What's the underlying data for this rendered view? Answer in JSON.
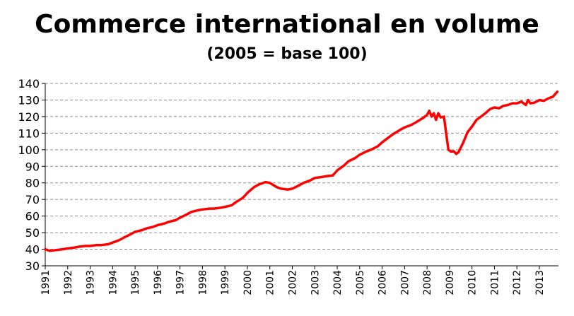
{
  "chart_data": {
    "type": "line",
    "title": "Commerce international en volume",
    "subtitle": "(2005 = base 100)",
    "xlabel": "",
    "ylabel": "",
    "ylim": [
      30,
      140
    ],
    "yticks": [
      30,
      40,
      50,
      60,
      70,
      80,
      90,
      100,
      110,
      120,
      130,
      140
    ],
    "xticks": [
      "1991",
      "1992",
      "1993",
      "1994",
      "1995",
      "1996",
      "1997",
      "1998",
      "1999",
      "2000",
      "2001",
      "2002",
      "2003",
      "2004",
      "2005",
      "2006",
      "2007",
      "2008",
      "2009",
      "2010",
      "2011",
      "2012",
      "2013"
    ],
    "xlim": [
      1991.0,
      2013.85
    ],
    "grid": "horizontal-dashed",
    "line_color": "#ff0000",
    "series": [
      {
        "x": [
          1991.0,
          1991.2,
          1991.5,
          1991.8,
          1992.0,
          1992.3,
          1992.5,
          1992.8,
          1993.0,
          1993.3,
          1993.5,
          1993.8,
          1994.0,
          1994.3,
          1994.5,
          1994.8,
          1995.0,
          1995.3,
          1995.5,
          1995.8,
          1996.0,
          1996.3,
          1996.5,
          1996.8,
          1997.0,
          1997.3,
          1997.5,
          1997.8,
          1998.0,
          1998.3,
          1998.5,
          1998.8,
          1999.0,
          1999.3,
          1999.5,
          1999.8,
          2000.0,
          2000.3,
          2000.5,
          2000.8,
          2001.0,
          2001.3,
          2001.5,
          2001.8,
          2002.0,
          2002.3,
          2002.5,
          2002.8,
          2003.0,
          2003.3,
          2003.5,
          2003.8,
          2004.0,
          2004.3,
          2004.5,
          2004.8,
          2005.0,
          2005.3,
          2005.5,
          2005.8,
          2006.0,
          2006.3,
          2006.5,
          2006.8,
          2007.0,
          2007.3,
          2007.5,
          2007.8,
          2008.0,
          2008.1,
          2008.2,
          2008.3,
          2008.4,
          2008.5,
          2008.6,
          2008.75,
          2008.85,
          2008.95,
          2009.05,
          2009.2,
          2009.3,
          2009.4,
          2009.6,
          2009.8,
          2010.0,
          2010.2,
          2010.4,
          2010.6,
          2010.8,
          2011.0,
          2011.2,
          2011.4,
          2011.6,
          2011.8,
          2012.0,
          2012.2,
          2012.4,
          2012.5,
          2012.6,
          2012.8,
          2013.0,
          2013.2,
          2013.4,
          2013.6,
          2013.8
        ],
        "values": [
          40,
          39,
          39.5,
          40,
          40.5,
          41,
          41.5,
          42,
          42,
          42.5,
          42.5,
          43,
          44,
          45.5,
          47,
          49,
          50.5,
          51.5,
          52.5,
          53.5,
          54.5,
          55.5,
          56.5,
          57.5,
          59,
          61,
          62.5,
          63.5,
          64,
          64.5,
          64.5,
          65,
          65.5,
          66.5,
          68.5,
          71,
          74,
          77.5,
          79,
          80.5,
          80,
          77.5,
          76.5,
          76,
          76.5,
          78.5,
          80,
          81.5,
          83,
          83.5,
          84,
          84.5,
          87.5,
          90.5,
          93,
          95,
          97,
          99,
          100,
          102,
          104.5,
          107.5,
          109.5,
          112,
          113.5,
          115,
          116.5,
          119,
          121,
          123.5,
          120,
          122,
          118,
          122,
          119.5,
          120,
          110,
          100,
          99,
          99,
          97.5,
          98.5,
          104,
          110.5,
          114,
          118,
          120,
          122,
          124.5,
          125.5,
          125,
          126.5,
          127,
          128,
          128,
          129,
          127,
          130,
          128,
          128.5,
          130,
          129.5,
          131,
          132,
          135
        ]
      }
    ]
  }
}
